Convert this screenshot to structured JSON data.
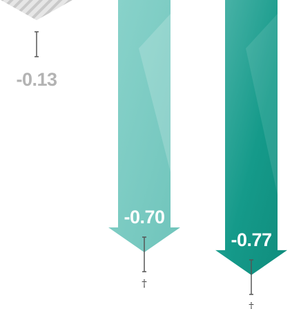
{
  "chart_data": {
    "type": "bar",
    "orientation": "downward arrows",
    "title": "",
    "xlabel": "",
    "ylabel": "",
    "grid": false,
    "legend": "none",
    "categories": [
      "",
      "",
      ""
    ],
    "series": [
      {
        "values": [
          -0.13,
          -0.7,
          -0.77
        ],
        "labels": [
          "-0.13",
          "-0.70",
          "-0.77"
        ],
        "error_annotations": [
          "",
          "†",
          "†"
        ]
      }
    ]
  },
  "colors": {
    "bar_1": "#c8c8c8",
    "bar_1_label": "#b3b3b3",
    "bar_2": "#7fcdc5",
    "bar_3": "#139585",
    "label_on_bar": "#ffffff",
    "error_bar": "#555555"
  }
}
